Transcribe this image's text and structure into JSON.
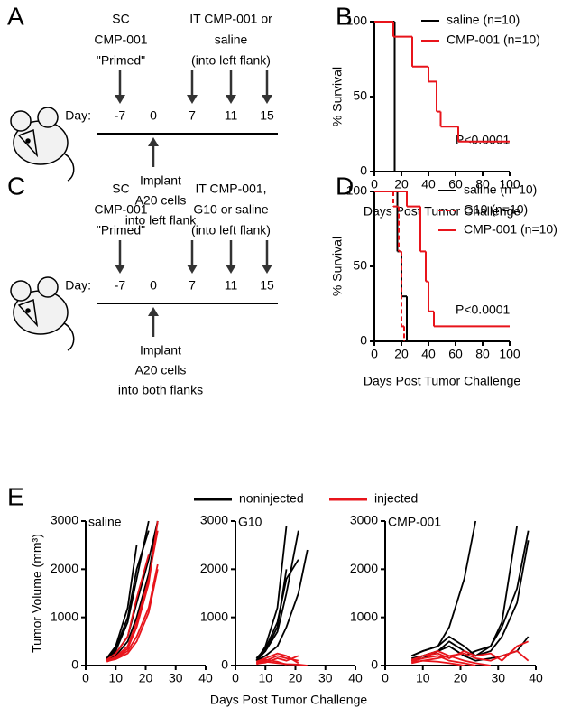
{
  "panel_labels": [
    "A",
    "B",
    "C",
    "D",
    "E"
  ],
  "diagrams": [
    {
      "left": [
        "SC",
        "CMP-001",
        "\"Primed\""
      ],
      "right": [
        "IT CMP-001 or",
        "saline",
        "(into left flank)"
      ],
      "day_label": "Day:",
      "days": [
        "-7",
        "0",
        "7",
        "11",
        "15"
      ],
      "below": [
        "Implant",
        "A20 cells",
        "into left flank"
      ]
    },
    {
      "left": [
        "SC",
        "CMP-001",
        "\"Primed\""
      ],
      "right": [
        "IT CMP-001,",
        "G10 or saline",
        "(into left flank)"
      ],
      "day_label": "Day:",
      "days": [
        "-7",
        "0",
        "7",
        "11",
        "15"
      ],
      "below": [
        "Implant",
        "A20 cells",
        "into both flanks"
      ]
    }
  ],
  "figure_e": {
    "ylabel": "Tumor Volume (mm³)",
    "xlabel": "Days Post Tumor Challenge",
    "legend": [
      {
        "name": "noninjected",
        "color": "#000000"
      },
      {
        "name": "injected",
        "color": "#e8141b"
      }
    ]
  },
  "chart_data": [
    {
      "type": "step",
      "ylabel": "% Survival",
      "xlabel": "Days Post Tumor Challenge",
      "xlim": [
        0,
        100
      ],
      "xticks": [
        0,
        20,
        40,
        60,
        80,
        100
      ],
      "ylim": [
        0,
        100
      ],
      "yticks": [
        0,
        50,
        100
      ],
      "annotation": "P<0.0001",
      "series": [
        {
          "name": "saline (n=10)",
          "color": "#000000",
          "dashed": false,
          "x": [
            0,
            15
          ],
          "values": [
            100,
            0
          ]
        },
        {
          "name": "CMP-001 (n=10)",
          "color": "#e8141b",
          "dashed": false,
          "x": [
            0,
            14,
            28,
            40,
            46,
            49,
            62,
            100
          ],
          "values": [
            100,
            90,
            70,
            60,
            40,
            30,
            20,
            20
          ]
        }
      ]
    },
    {
      "type": "step",
      "ylabel": "% Survival",
      "xlabel": "Days Post Tumor Challenge",
      "xlim": [
        0,
        100
      ],
      "xticks": [
        0,
        20,
        40,
        60,
        80,
        100
      ],
      "ylim": [
        0,
        100
      ],
      "yticks": [
        0,
        50,
        100
      ],
      "annotation": "P<0.0001",
      "series": [
        {
          "name": "saline (n=10)",
          "color": "#000000",
          "dashed": false,
          "x": [
            0,
            17,
            20,
            24
          ],
          "values": [
            100,
            60,
            30,
            0
          ]
        },
        {
          "name": "G10 (n=10)",
          "color": "#e8141b",
          "dashed": true,
          "x": [
            0,
            14,
            18,
            20,
            22
          ],
          "values": [
            100,
            90,
            60,
            10,
            0
          ]
        },
        {
          "name": "CMP-001 (n=10)",
          "color": "#e8141b",
          "dashed": false,
          "x": [
            0,
            24,
            34,
            38,
            40,
            44,
            100
          ],
          "values": [
            100,
            90,
            60,
            40,
            20,
            10,
            10
          ]
        }
      ]
    },
    {
      "type": "line",
      "label": "saline",
      "xlim": [
        0,
        40
      ],
      "xticks": [
        0,
        10,
        20,
        30,
        40
      ],
      "ylim": [
        0,
        3000
      ],
      "yticks": [
        0,
        1000,
        2000,
        3000
      ],
      "series": [
        {
          "color": "#000000",
          "x": [
            7,
            10,
            14,
            17
          ],
          "values": [
            150,
            400,
            1200,
            2500
          ]
        },
        {
          "color": "#000000",
          "x": [
            7,
            10,
            14,
            17,
            21,
            24
          ],
          "values": [
            120,
            250,
            600,
            1300,
            2200,
            3000
          ]
        },
        {
          "color": "#000000",
          "x": [
            7,
            10,
            14,
            17,
            21
          ],
          "values": [
            100,
            300,
            900,
            1800,
            3000
          ]
        },
        {
          "color": "#000000",
          "x": [
            7,
            10,
            14,
            17,
            21,
            24
          ],
          "values": [
            100,
            200,
            500,
            1000,
            1900,
            3000
          ]
        },
        {
          "color": "#000000",
          "x": [
            7,
            10,
            14,
            17,
            21
          ],
          "values": [
            130,
            350,
            1000,
            2000,
            2800
          ]
        },
        {
          "color": "#e8141b",
          "x": [
            7,
            10,
            14,
            17,
            21,
            24
          ],
          "values": [
            100,
            150,
            300,
            600,
            1200,
            2100
          ]
        },
        {
          "color": "#e8141b",
          "x": [
            7,
            10,
            14,
            17,
            21,
            24
          ],
          "values": [
            80,
            150,
            350,
            800,
            1700,
            3000
          ]
        },
        {
          "color": "#e8141b",
          "x": [
            7,
            10,
            14,
            17,
            21
          ],
          "values": [
            120,
            250,
            600,
            1400,
            2300
          ]
        },
        {
          "color": "#e8141b",
          "x": [
            7,
            10,
            14,
            17,
            21,
            24
          ],
          "values": [
            90,
            130,
            250,
            500,
            1100,
            2000
          ]
        },
        {
          "color": "#e8141b",
          "x": [
            7,
            10,
            14,
            17,
            21,
            24
          ],
          "values": [
            100,
            180,
            400,
            900,
            1800,
            2800
          ]
        }
      ]
    },
    {
      "type": "line",
      "label": "G10",
      "xlim": [
        0,
        40
      ],
      "xticks": [
        0,
        10,
        20,
        30,
        40
      ],
      "ylim": [
        0,
        3000
      ],
      "yticks": [
        0,
        1000,
        2000,
        3000
      ],
      "series": [
        {
          "color": "#000000",
          "x": [
            7,
            10,
            14,
            17
          ],
          "values": [
            100,
            400,
            1200,
            2900
          ]
        },
        {
          "color": "#000000",
          "x": [
            7,
            10,
            14,
            17,
            21
          ],
          "values": [
            120,
            300,
            700,
            1500,
            2800
          ]
        },
        {
          "color": "#000000",
          "x": [
            7,
            10,
            14,
            17,
            21,
            24
          ],
          "values": [
            100,
            200,
            400,
            800,
            1500,
            2400
          ]
        },
        {
          "color": "#000000",
          "x": [
            7,
            10,
            14,
            17,
            21
          ],
          "values": [
            150,
            350,
            900,
            1800,
            2200
          ]
        },
        {
          "color": "#000000",
          "x": [
            7,
            10,
            14,
            17
          ],
          "values": [
            100,
            300,
            800,
            2000
          ]
        },
        {
          "color": "#e8141b",
          "x": [
            7,
            10,
            14,
            17,
            21
          ],
          "values": [
            50,
            100,
            200,
            150,
            100
          ]
        },
        {
          "color": "#e8141b",
          "x": [
            7,
            10,
            14,
            17,
            21,
            24
          ],
          "values": [
            30,
            80,
            50,
            30,
            20,
            0
          ]
        },
        {
          "color": "#e8141b",
          "x": [
            7,
            10,
            14,
            17,
            21
          ],
          "values": [
            80,
            150,
            250,
            200,
            50
          ]
        },
        {
          "color": "#e8141b",
          "x": [
            7,
            10,
            14,
            17
          ],
          "values": [
            60,
            120,
            80,
            20
          ]
        },
        {
          "color": "#e8141b",
          "x": [
            7,
            10,
            14,
            17,
            21
          ],
          "values": [
            40,
            60,
            150,
            100,
            200
          ]
        }
      ]
    },
    {
      "type": "line",
      "label": "CMP-001",
      "xlim": [
        0,
        40
      ],
      "xticks": [
        0,
        10,
        20,
        30,
        40
      ],
      "ylim": [
        0,
        3000
      ],
      "yticks": [
        0,
        1000,
        2000,
        3000
      ],
      "series": [
        {
          "color": "#000000",
          "x": [
            7,
            10,
            14,
            17,
            21,
            24
          ],
          "values": [
            200,
            300,
            400,
            800,
            1800,
            3000
          ]
        },
        {
          "color": "#000000",
          "x": [
            7,
            10,
            14,
            17,
            21,
            24,
            28,
            31,
            35,
            38
          ],
          "values": [
            150,
            200,
            300,
            400,
            200,
            300,
            400,
            800,
            1600,
            2800
          ]
        },
        {
          "color": "#000000",
          "x": [
            7,
            10,
            14,
            17,
            21,
            24,
            28,
            31,
            35,
            38
          ],
          "values": [
            100,
            150,
            300,
            500,
            300,
            200,
            300,
            600,
            1300,
            2600
          ]
        },
        {
          "color": "#000000",
          "x": [
            7,
            10,
            14,
            17,
            21,
            24,
            28,
            31,
            35
          ],
          "values": [
            200,
            300,
            400,
            600,
            400,
            200,
            400,
            900,
            2900
          ]
        },
        {
          "color": "#000000",
          "x": [
            7,
            10,
            14,
            17,
            21,
            24,
            28,
            31,
            35,
            38
          ],
          "values": [
            100,
            200,
            300,
            400,
            200,
            100,
            150,
            200,
            300,
            600
          ]
        },
        {
          "color": "#e8141b",
          "x": [
            7,
            10,
            14,
            17,
            21,
            24,
            28
          ],
          "values": [
            100,
            200,
            300,
            200,
            100,
            50,
            0
          ]
        },
        {
          "color": "#e8141b",
          "x": [
            7,
            10,
            14,
            17,
            21,
            24,
            28,
            31,
            35,
            38
          ],
          "values": [
            50,
            100,
            150,
            200,
            250,
            150,
            100,
            200,
            300,
            100
          ]
        },
        {
          "color": "#e8141b",
          "x": [
            7,
            10,
            14,
            17,
            21,
            24
          ],
          "values": [
            80,
            150,
            200,
            100,
            50,
            0
          ]
        },
        {
          "color": "#e8141b",
          "x": [
            7,
            10,
            14,
            17,
            21,
            24,
            28,
            31,
            35,
            38
          ],
          "values": [
            120,
            200,
            250,
            150,
            300,
            200,
            250,
            100,
            400,
            500
          ]
        },
        {
          "color": "#e8141b",
          "x": [
            7,
            10,
            14,
            17,
            21
          ],
          "values": [
            60,
            100,
            80,
            50,
            0
          ]
        }
      ]
    }
  ]
}
